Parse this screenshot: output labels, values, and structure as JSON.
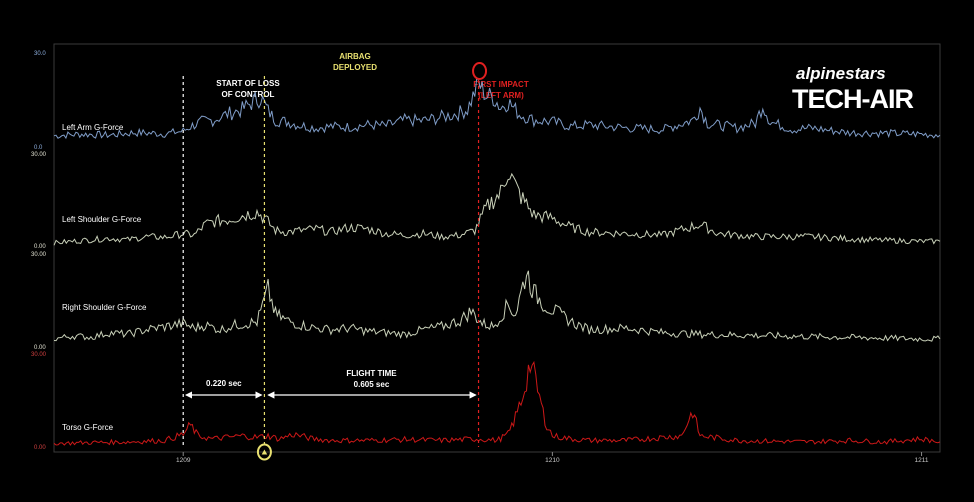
{
  "chart_data": {
    "type": "line",
    "x_axis": {
      "range": [
        1208.65,
        1211.05
      ],
      "ticks": [
        {
          "value": 1209,
          "label": "1209"
        },
        {
          "value": 1210,
          "label": "1210"
        },
        {
          "value": 1211,
          "label": "1211"
        }
      ]
    },
    "series": [
      {
        "name": "Left Arm G-Force",
        "color": "#7f9cc7",
        "y_max_label": "30.0",
        "y_min_label": "0.0",
        "y_label_color": "#8fb0e0",
        "ylim": [
          0,
          30
        ],
        "points": [
          [
            1208.65,
            3.0
          ],
          [
            1208.72,
            3.5
          ],
          [
            1208.8,
            3.2
          ],
          [
            1208.87,
            4.0
          ],
          [
            1208.95,
            3.6
          ],
          [
            1209.0,
            4.5
          ],
          [
            1209.02,
            6.0
          ],
          [
            1209.05,
            7.5
          ],
          [
            1209.08,
            8.0
          ],
          [
            1209.12,
            10.0
          ],
          [
            1209.16,
            11.5
          ],
          [
            1209.19,
            14.0
          ],
          [
            1209.21,
            15.5
          ],
          [
            1209.23,
            11.0
          ],
          [
            1209.25,
            8.0
          ],
          [
            1209.28,
            7.5
          ],
          [
            1209.31,
            6.5
          ],
          [
            1209.36,
            5.5
          ],
          [
            1209.4,
            6.0
          ],
          [
            1209.45,
            5.8
          ],
          [
            1209.5,
            6.5
          ],
          [
            1209.55,
            6.2
          ],
          [
            1209.6,
            8.0
          ],
          [
            1209.65,
            7.8
          ],
          [
            1209.7,
            9.0
          ],
          [
            1209.74,
            10.0
          ],
          [
            1209.77,
            11.5
          ],
          [
            1209.79,
            17.0
          ],
          [
            1209.8,
            20.0
          ],
          [
            1209.82,
            16.0
          ],
          [
            1209.84,
            15.5
          ],
          [
            1209.86,
            12.0
          ],
          [
            1209.88,
            14.0
          ],
          [
            1209.91,
            10.0
          ],
          [
            1209.95,
            8.0
          ],
          [
            1210.0,
            7.5
          ],
          [
            1210.05,
            6.0
          ],
          [
            1210.1,
            6.5
          ],
          [
            1210.2,
            5.5
          ],
          [
            1210.3,
            5.0
          ],
          [
            1210.38,
            8.0
          ],
          [
            1210.4,
            12.0
          ],
          [
            1210.42,
            7.0
          ],
          [
            1210.5,
            5.5
          ],
          [
            1210.55,
            7.0
          ],
          [
            1210.57,
            13.0
          ],
          [
            1210.59,
            7.5
          ],
          [
            1210.65,
            5.0
          ],
          [
            1210.7,
            5.5
          ],
          [
            1210.8,
            4.0
          ],
          [
            1210.9,
            3.8
          ],
          [
            1211.0,
            3.5
          ],
          [
            1211.05,
            3.2
          ]
        ]
      },
      {
        "name": "Left Shoulder G-Force",
        "color": "#c8d0b8",
        "y_max_label": "30.00",
        "y_min_label": "0.00",
        "y_label_color": "#e0e0d0",
        "ylim": [
          0,
          30
        ],
        "points": [
          [
            1208.65,
            1.0
          ],
          [
            1208.7,
            1.5
          ],
          [
            1208.75,
            2.0
          ],
          [
            1208.8,
            2.5
          ],
          [
            1208.85,
            2.0
          ],
          [
            1208.9,
            3.0
          ],
          [
            1208.95,
            2.8
          ],
          [
            1209.0,
            4.0
          ],
          [
            1209.03,
            3.5
          ],
          [
            1209.06,
            7.0
          ],
          [
            1209.09,
            8.0
          ],
          [
            1209.12,
            8.5
          ],
          [
            1209.15,
            9.5
          ],
          [
            1209.18,
            10.5
          ],
          [
            1209.2,
            11.0
          ],
          [
            1209.22,
            9.0
          ],
          [
            1209.25,
            5.0
          ],
          [
            1209.28,
            4.5
          ],
          [
            1209.32,
            5.0
          ],
          [
            1209.36,
            5.5
          ],
          [
            1209.4,
            4.5
          ],
          [
            1209.45,
            6.0
          ],
          [
            1209.5,
            5.5
          ],
          [
            1209.55,
            4.0
          ],
          [
            1209.6,
            3.5
          ],
          [
            1209.65,
            4.0
          ],
          [
            1209.7,
            3.0
          ],
          [
            1209.75,
            3.5
          ],
          [
            1209.79,
            5.0
          ],
          [
            1209.82,
            12.0
          ],
          [
            1209.84,
            15.0
          ],
          [
            1209.86,
            17.0
          ],
          [
            1209.88,
            25.0
          ],
          [
            1209.9,
            19.0
          ],
          [
            1209.92,
            15.0
          ],
          [
            1209.95,
            10.0
          ],
          [
            1210.0,
            9.0
          ],
          [
            1210.05,
            6.0
          ],
          [
            1210.1,
            4.5
          ],
          [
            1210.2,
            4.0
          ],
          [
            1210.3,
            3.5
          ],
          [
            1210.4,
            7.0
          ],
          [
            1210.45,
            4.0
          ],
          [
            1210.55,
            3.0
          ],
          [
            1210.7,
            3.0
          ],
          [
            1210.85,
            2.0
          ],
          [
            1211.0,
            1.5
          ],
          [
            1211.05,
            1.5
          ]
        ]
      },
      {
        "name": "Right Shoulder G-Force",
        "color": "#c8d0b8",
        "y_max_label": "30.00",
        "y_min_label": "0.00",
        "y_label_color": "#e0e0d0",
        "ylim": [
          0,
          30
        ],
        "points": [
          [
            1208.65,
            2.0
          ],
          [
            1208.7,
            3.0
          ],
          [
            1208.75,
            2.5
          ],
          [
            1208.8,
            4.0
          ],
          [
            1208.85,
            3.5
          ],
          [
            1208.9,
            5.0
          ],
          [
            1208.95,
            6.0
          ],
          [
            1209.0,
            7.0
          ],
          [
            1209.03,
            5.5
          ],
          [
            1209.06,
            6.5
          ],
          [
            1209.1,
            5.0
          ],
          [
            1209.14,
            6.5
          ],
          [
            1209.17,
            7.0
          ],
          [
            1209.2,
            7.5
          ],
          [
            1209.23,
            18.0
          ],
          [
            1209.25,
            10.0
          ],
          [
            1209.28,
            8.0
          ],
          [
            1209.32,
            6.5
          ],
          [
            1209.36,
            5.5
          ],
          [
            1209.4,
            5.0
          ],
          [
            1209.45,
            5.5
          ],
          [
            1209.5,
            4.5
          ],
          [
            1209.55,
            4.0
          ],
          [
            1209.6,
            3.5
          ],
          [
            1209.65,
            5.0
          ],
          [
            1209.7,
            6.0
          ],
          [
            1209.75,
            8.0
          ],
          [
            1209.78,
            11.0
          ],
          [
            1209.81,
            7.0
          ],
          [
            1209.84,
            6.0
          ],
          [
            1209.88,
            13.0
          ],
          [
            1209.9,
            10.0
          ],
          [
            1209.93,
            24.0
          ],
          [
            1209.95,
            17.0
          ],
          [
            1209.98,
            13.0
          ],
          [
            1210.02,
            10.0
          ],
          [
            1210.06,
            7.0
          ],
          [
            1210.1,
            5.0
          ],
          [
            1210.2,
            5.5
          ],
          [
            1210.3,
            4.0
          ],
          [
            1210.4,
            3.5
          ],
          [
            1210.6,
            3.0
          ],
          [
            1210.8,
            2.5
          ],
          [
            1211.0,
            2.0
          ],
          [
            1211.05,
            2.0
          ]
        ]
      },
      {
        "name": "Torso G-Force",
        "color": "#cc1818",
        "y_max_label": "30.00",
        "y_min_label": "0.00",
        "y_label_color": "#d04040",
        "ylim": [
          0,
          30
        ],
        "points": [
          [
            1208.65,
            0.5
          ],
          [
            1208.75,
            0.8
          ],
          [
            1208.85,
            1.0
          ],
          [
            1208.95,
            1.5
          ],
          [
            1209.0,
            3.5
          ],
          [
            1209.02,
            6.5
          ],
          [
            1209.04,
            3.0
          ],
          [
            1209.08,
            2.0
          ],
          [
            1209.12,
            2.5
          ],
          [
            1209.16,
            3.0
          ],
          [
            1209.2,
            2.5
          ],
          [
            1209.23,
            3.0
          ],
          [
            1209.26,
            2.0
          ],
          [
            1209.3,
            3.5
          ],
          [
            1209.35,
            2.0
          ],
          [
            1209.4,
            1.5
          ],
          [
            1209.5,
            1.5
          ],
          [
            1209.6,
            1.8
          ],
          [
            1209.7,
            1.5
          ],
          [
            1209.8,
            2.0
          ],
          [
            1209.85,
            1.5
          ],
          [
            1209.88,
            3.5
          ],
          [
            1209.9,
            9.0
          ],
          [
            1209.92,
            16.0
          ],
          [
            1209.94,
            27.0
          ],
          [
            1209.96,
            18.0
          ],
          [
            1209.98,
            8.0
          ],
          [
            1210.0,
            3.0
          ],
          [
            1210.05,
            2.0
          ],
          [
            1210.1,
            1.5
          ],
          [
            1210.2,
            1.5
          ],
          [
            1210.35,
            3.0
          ],
          [
            1210.38,
            11.0
          ],
          [
            1210.4,
            3.0
          ],
          [
            1210.5,
            1.5
          ],
          [
            1210.6,
            1.2
          ],
          [
            1210.7,
            1.0
          ],
          [
            1210.8,
            1.5
          ],
          [
            1210.9,
            1.0
          ],
          [
            1211.0,
            2.0
          ],
          [
            1211.05,
            1.0
          ]
        ]
      }
    ],
    "annotations": {
      "loss_of_control": {
        "text_line1": "START OF LOSS",
        "text_line2": "OF CONTROL",
        "x": 1209.0,
        "color": "#ffffff"
      },
      "airbag_deployed": {
        "text_line1": "AIRBAG",
        "text_line2": "DEPLOYED",
        "x": 1209.22,
        "color": "#e8e070"
      },
      "first_impact": {
        "text_line1": "FIRST IMPACT",
        "text_line2": "(LEFT ARM)",
        "x": 1209.8,
        "color": "#e02020"
      },
      "interval_1": {
        "text": "0.220 sec"
      },
      "interval_2": {
        "label": "FLIGHT TIME",
        "text": "0.605 sec"
      }
    },
    "logo": {
      "line1": "alpinestars",
      "line2": "TECH-AIR"
    },
    "grid": false,
    "legend": "none"
  }
}
